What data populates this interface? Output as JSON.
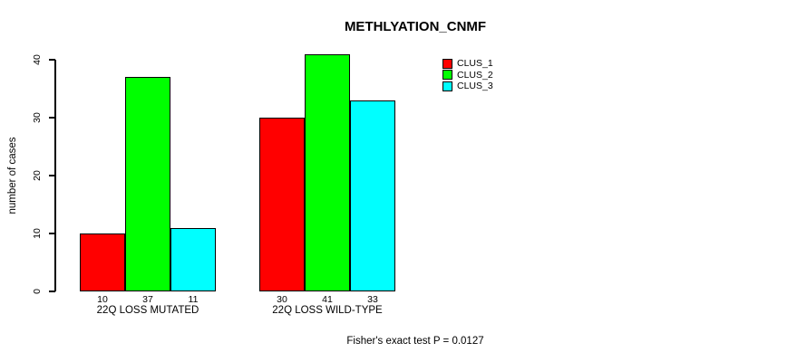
{
  "chart_data": {
    "type": "bar",
    "title": "METHLYATION_CNMF",
    "ylabel": "number of cases",
    "xlabel": "",
    "ylim": [
      0,
      40
    ],
    "yticks": [
      0,
      10,
      20,
      30,
      40
    ],
    "categories": [
      "22Q LOSS MUTATED",
      "22Q LOSS WILD-TYPE"
    ],
    "series": [
      {
        "name": "CLUS_1",
        "color": "#ff0000",
        "values": [
          10,
          30
        ]
      },
      {
        "name": "CLUS_2",
        "color": "#00ff00",
        "values": [
          37,
          41
        ]
      },
      {
        "name": "CLUS_3",
        "color": "#00ffff",
        "values": [
          11,
          33
        ]
      }
    ],
    "bar_value_labels": [
      [
        10,
        37,
        11
      ],
      [
        30,
        41,
        33
      ]
    ],
    "legend": {
      "position": "top-right",
      "entries": [
        {
          "label": "CLUS_1",
          "color": "#ff0000"
        },
        {
          "label": "CLUS_2",
          "color": "#00ff00"
        },
        {
          "label": "CLUS_3",
          "color": "#00ffff"
        }
      ]
    },
    "annotation": "Fisher's exact test P = 0.0127",
    "grid": false,
    "colors": {
      "background": "#ffffff",
      "axis": "#000000",
      "bar_border": "#000000",
      "text": "#000000"
    }
  }
}
